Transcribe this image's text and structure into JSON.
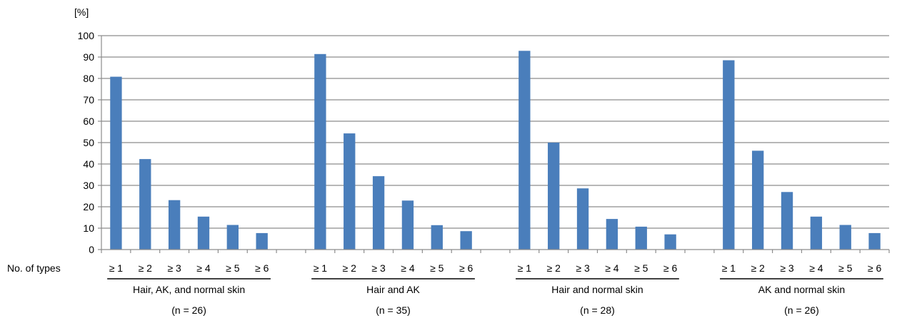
{
  "chart_data": {
    "type": "bar",
    "ylabel": "[%]",
    "row_label": "No. of types",
    "ylim": [
      0,
      100
    ],
    "yticks": [
      0,
      10,
      20,
      30,
      40,
      50,
      60,
      70,
      80,
      90,
      100
    ],
    "grid": true,
    "bar_color": "#4a7ebb",
    "categories": [
      "≥ 1",
      "≥ 2",
      "≥ 3",
      "≥ 4",
      "≥ 5",
      "≥ 6"
    ],
    "groups": [
      {
        "label": "Hair, AK, and normal skin",
        "n": "(n = 26)",
        "values": [
          80.8,
          42.3,
          23.1,
          15.4,
          11.5,
          7.7
        ]
      },
      {
        "label": "Hair and AK",
        "n": "(n = 35)",
        "values": [
          91.4,
          54.3,
          34.3,
          22.9,
          11.4,
          8.6
        ]
      },
      {
        "label": "Hair and normal skin",
        "n": "(n = 28)",
        "values": [
          92.9,
          50.0,
          28.6,
          14.3,
          10.7,
          7.1
        ]
      },
      {
        "label": "AK and normal skin",
        "n": "(n = 26)",
        "values": [
          88.5,
          46.2,
          26.9,
          15.4,
          11.5,
          7.7
        ]
      }
    ]
  }
}
